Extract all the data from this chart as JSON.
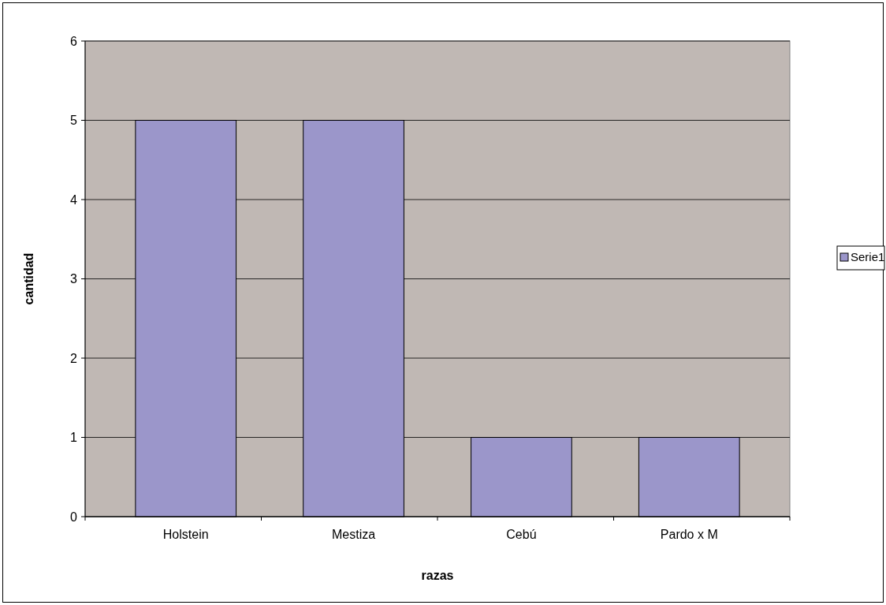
{
  "chart_data": {
    "type": "bar",
    "xlabel": "razas",
    "ylabel": "cantidad",
    "categories": [
      "Holstein",
      "Mestiza",
      "Cebú",
      "Pardo x M"
    ],
    "series": [
      {
        "name": "Serie1",
        "color": "#9b96ca",
        "values": [
          5,
          5,
          1,
          1
        ]
      }
    ],
    "ylim": [
      0,
      6
    ],
    "yticks": [
      0,
      1,
      2,
      3,
      4,
      5,
      6
    ],
    "grid": "y",
    "legend": "right"
  }
}
